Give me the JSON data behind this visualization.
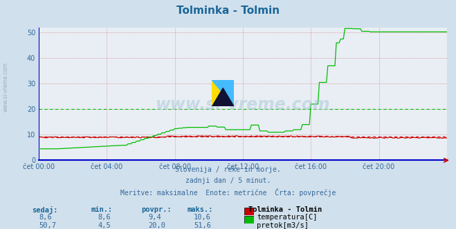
{
  "title": "Tolminka - Tolmin",
  "title_color": "#1a6699",
  "bg_color": "#d0e0ec",
  "plot_bg_color": "#e8eef4",
  "xlabel_color": "#336699",
  "ylabel_ticks": [
    0,
    10,
    20,
    30,
    40,
    50
  ],
  "ylim": [
    0,
    52
  ],
  "xlim": [
    0,
    288
  ],
  "xtick_labels": [
    "čet 00:00",
    "čet 04:00",
    "čet 08:00",
    "čet 12:00",
    "čet 16:00",
    "čet 20:00"
  ],
  "xtick_positions": [
    0,
    48,
    96,
    144,
    192,
    240
  ],
  "watermark_text": "www.si-vreme.com",
  "subtitle_lines": [
    "Slovenija / reke in morje.",
    "zadnji dan / 5 minut.",
    "Meritve: maksimalne  Enote: metrične  Črta: povprečje"
  ],
  "legend_header": "Tolminka - Tolmin",
  "legend_rows": [
    {
      "sedaj": "8,6",
      "min": "8,6",
      "povpr": "9,4",
      "maks": "10,6",
      "color": "#cc0000",
      "label": "temperatura[C]"
    },
    {
      "sedaj": "50,7",
      "min": "4,5",
      "povpr": "20,0",
      "maks": "51,6",
      "color": "#00bb00",
      "label": "pretok[m3/s]"
    }
  ],
  "avg_temp": 9.4,
  "avg_flow": 20.0,
  "temp_color": "#cc0000",
  "flow_color": "#00bb00",
  "spine_color": "#0000cc",
  "grid_color": "#cc6666"
}
